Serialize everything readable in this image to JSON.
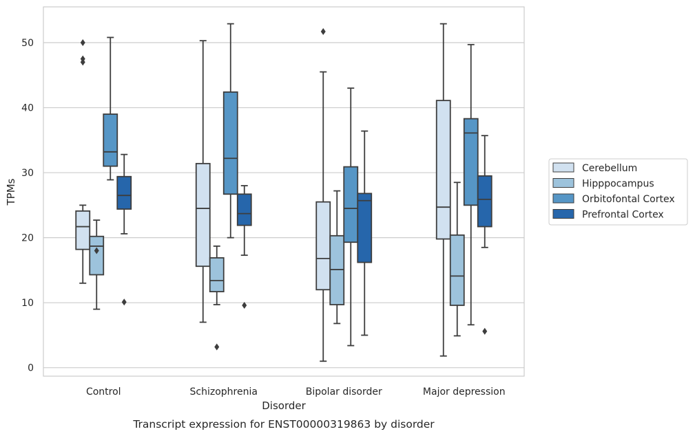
{
  "chart_data": {
    "type": "box",
    "caption": "Transcript expression for ENST00000319863 by disorder",
    "xlabel": "Disorder",
    "ylabel": "TPMs",
    "ylim": [
      -1.3,
      55.5
    ],
    "yticks": [
      0,
      10,
      20,
      30,
      40,
      50
    ],
    "grid": "horizontal",
    "legend_position": "right",
    "categories": [
      "Control",
      "Schizophrenia",
      "Bipolar disorder",
      "Major depression"
    ],
    "series": [
      {
        "name": "Cerebellum",
        "color": "#d1e1f0",
        "boxes": [
          {
            "whisker_low": 13.0,
            "q1": 18.2,
            "median": 21.7,
            "q3": 24.1,
            "whisker_high": 25.0,
            "outliers": [
              47.0,
              47.5,
              50.0
            ]
          },
          {
            "whisker_low": 7.0,
            "q1": 15.6,
            "median": 24.5,
            "q3": 31.4,
            "whisker_high": 50.3,
            "outliers": []
          },
          {
            "whisker_low": 1.0,
            "q1": 12.0,
            "median": 16.8,
            "q3": 25.5,
            "whisker_high": 45.5,
            "outliers": [
              51.7
            ]
          },
          {
            "whisker_low": 1.8,
            "q1": 19.8,
            "median": 24.7,
            "q3": 41.1,
            "whisker_high": 52.9,
            "outliers": []
          }
        ]
      },
      {
        "name": "Hipppocampus",
        "color": "#9dc3dc",
        "boxes": [
          {
            "whisker_low": 9.0,
            "q1": 14.3,
            "median": 18.7,
            "q3": 20.2,
            "whisker_high": 22.7,
            "outliers": [
              18.0
            ]
          },
          {
            "whisker_low": 9.7,
            "q1": 11.7,
            "median": 13.4,
            "q3": 16.9,
            "whisker_high": 18.7,
            "outliers": [
              3.2
            ]
          },
          {
            "whisker_low": 6.8,
            "q1": 9.7,
            "median": 15.1,
            "q3": 20.3,
            "whisker_high": 27.2,
            "outliers": []
          },
          {
            "whisker_low": 4.9,
            "q1": 9.6,
            "median": 14.1,
            "q3": 20.4,
            "whisker_high": 28.5,
            "outliers": []
          }
        ]
      },
      {
        "name": "Orbitofontal Cortex",
        "color": "#5696c6",
        "boxes": [
          {
            "whisker_low": 28.9,
            "q1": 31.0,
            "median": 33.2,
            "q3": 39.0,
            "whisker_high": 50.8,
            "outliers": []
          },
          {
            "whisker_low": 20.0,
            "q1": 26.7,
            "median": 32.2,
            "q3": 42.4,
            "whisker_high": 52.9,
            "outliers": []
          },
          {
            "whisker_low": 3.4,
            "q1": 19.3,
            "median": 24.5,
            "q3": 30.9,
            "whisker_high": 43.0,
            "outliers": []
          },
          {
            "whisker_low": 6.6,
            "q1": 25.0,
            "median": 36.1,
            "q3": 38.3,
            "whisker_high": 49.7,
            "outliers": []
          }
        ]
      },
      {
        "name": "Prefrontal Cortex",
        "color": "#2666ab",
        "boxes": [
          {
            "whisker_low": 20.6,
            "q1": 24.4,
            "median": 26.5,
            "q3": 29.4,
            "whisker_high": 32.8,
            "outliers": [
              10.1
            ]
          },
          {
            "whisker_low": 17.3,
            "q1": 21.9,
            "median": 23.7,
            "q3": 26.7,
            "whisker_high": 28.0,
            "outliers": [
              9.6
            ]
          },
          {
            "whisker_low": 5.0,
            "q1": 16.2,
            "median": 25.7,
            "q3": 26.8,
            "whisker_high": 36.4,
            "outliers": []
          },
          {
            "whisker_low": 18.5,
            "q1": 21.7,
            "median": 25.9,
            "q3": 29.5,
            "whisker_high": 35.7,
            "outliers": [
              5.6
            ]
          }
        ]
      }
    ]
  }
}
